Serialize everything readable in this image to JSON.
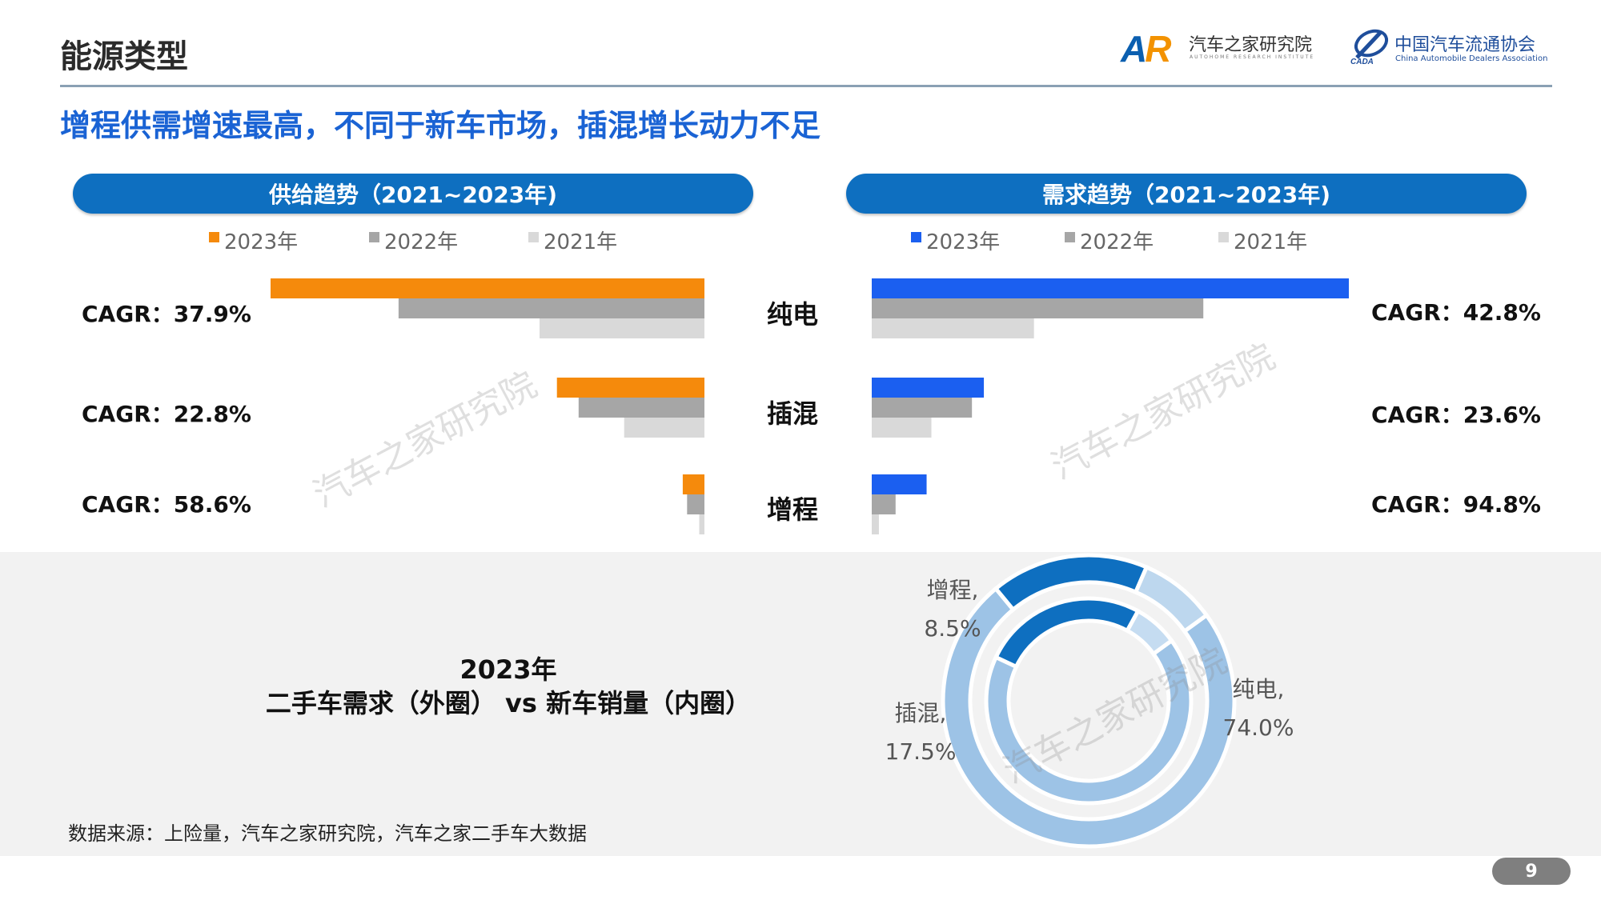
{
  "header": {
    "title": "能源类型",
    "logo_ar_name": "汽车之家研究院",
    "logo_ar_sub": "AUTOHOME RESEARCH INSTITUTE",
    "logo_cada_name": "中国汽车流通协会",
    "logo_cada_sub": "China Automobile Dealers Association"
  },
  "subtitle": "增程供需增速最高，不同于新车市场，插混增长动力不足",
  "colors": {
    "supply_2023": "#f58a0c",
    "demand_2023": "#1b5ff0",
    "y2022": "#a6a6a6",
    "y2021": "#d9d9d9",
    "pill": "#0e6fc0",
    "donut_outer": "#9dc3e6",
    "donut_outer_light": "#bdd7ee",
    "donut_dark": "#0e6fc0",
    "donut_inner_light": "#c5dcf1"
  },
  "chart_data": [
    {
      "type": "bar",
      "title": "供给趋势（2021~2023年)",
      "orientation": "horizontal",
      "categories": [
        "纯电",
        "插混",
        "增程"
      ],
      "series": [
        {
          "name": "2023年",
          "values": [
            100,
            34,
            5
          ]
        },
        {
          "name": "2022年",
          "values": [
            70.5,
            29,
            4
          ]
        },
        {
          "name": "2021年",
          "values": [
            38,
            18.5,
            1.2
          ]
        }
      ],
      "annotations": [
        "CAGR：37.9%",
        "CAGR：22.8%",
        "CAGR：58.6%"
      ],
      "legend": "top",
      "xlim": [
        0,
        100
      ]
    },
    {
      "type": "bar",
      "title": "需求趋势（2021~2023年)",
      "orientation": "horizontal",
      "categories": [
        "纯电",
        "插混",
        "增程"
      ],
      "series": [
        {
          "name": "2023年",
          "values": [
            100,
            23.5,
            11.5
          ]
        },
        {
          "name": "2022年",
          "values": [
            69.5,
            21,
            5
          ]
        },
        {
          "name": "2021年",
          "values": [
            34,
            12.5,
            1.5
          ]
        }
      ],
      "annotations": [
        "CAGR：42.8%",
        "CAGR：23.6%",
        "CAGR：94.8%"
      ],
      "legend": "top",
      "xlim": [
        0,
        100
      ]
    },
    {
      "type": "pie",
      "title": "2023年\n二手车需求（外圈） vs 新车销量（内圈）",
      "rings": [
        {
          "name": "二手车需求（外圈）",
          "categories": [
            "纯电",
            "插混",
            "增程"
          ],
          "values": [
            74.0,
            17.5,
            8.5
          ]
        },
        {
          "name": "新车销量（内圈）",
          "categories": [
            "纯电",
            "插混",
            "增程"
          ],
          "values": [
            67,
            26,
            7
          ]
        }
      ]
    }
  ],
  "supply": {
    "title": "供给趋势（2021~2023年)",
    "legend": [
      "2023年",
      "2022年",
      "2021年"
    ],
    "cagr": [
      "CAGR：37.9%",
      "CAGR：22.8%",
      "CAGR：58.6%"
    ]
  },
  "demand": {
    "title": "需求趋势（2021~2023年)",
    "legend": [
      "2023年",
      "2022年",
      "2021年"
    ],
    "cagr": [
      "CAGR：42.8%",
      "CAGR：23.6%",
      "CAGR：94.8%"
    ]
  },
  "categories": [
    "纯电",
    "插混",
    "增程"
  ],
  "donut": {
    "title_line1": "2023年",
    "title_line2": "二手车需求（外圈） vs 新车销量（内圈）",
    "labels": [
      {
        "name": "增程,",
        "value": "8.5%"
      },
      {
        "name": "插混,",
        "value": "17.5%"
      },
      {
        "name": "纯电,",
        "value": "74.0%"
      }
    ]
  },
  "source": "数据来源：上险量，汽车之家研究院，汽车之家二手车大数据",
  "watermark": "汽车之家研究院",
  "page_number": "9"
}
